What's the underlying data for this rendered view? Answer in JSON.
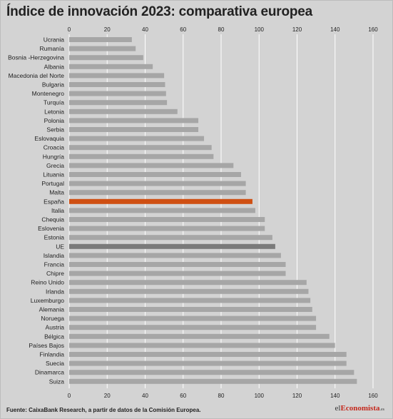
{
  "title": "Índice de innovación 2023: comparativa europea",
  "source": "Fuente: CaixaBank Research, a partir de datos de la Comisión Europea.",
  "logo": {
    "prefix": "el",
    "brand": "Economista",
    "suffix": ".es"
  },
  "colors": {
    "background": "#d3d3d3",
    "bar_default": "#a6a6a6",
    "bar_spain": "#cf4f12",
    "bar_eu": "#7a7a7a",
    "grid": "#ffffff",
    "text": "#222222"
  },
  "chart_data": {
    "type": "bar",
    "orientation": "horizontal",
    "xlim": [
      0,
      160
    ],
    "ticks": [
      "0",
      "20",
      "40",
      "60",
      "80",
      "100",
      "120",
      "140",
      "160"
    ],
    "tick_values": [
      0,
      20,
      40,
      60,
      80,
      100,
      120,
      140,
      160
    ],
    "axis_labels_top_and_bottom": true,
    "grid": true,
    "highlight": {
      "España": "bar_spain",
      "UE": "bar_eu"
    },
    "categories": [
      "Ucrania",
      "Rumanía",
      "Bosnia -Herzegovina",
      "Albania",
      "Macedonia del Norte",
      "Bulgaria",
      "Montenegro",
      "Turquía",
      "Letonia",
      "Polonia",
      "Serbia",
      "Eslovaquia",
      "Croacia",
      "Hungría",
      "Grecia",
      "Lituania",
      "Portugal",
      "Malta",
      "España",
      "Italia",
      "Chequia",
      "Eslovenia",
      "Estonia",
      "UE",
      "Islandia",
      "Francia",
      "Chipre",
      "Reino Unido",
      "Irlanda",
      "Luxemburgo",
      "Alemania",
      "Noruega",
      "Austria",
      "Bélgica",
      "Países Bajos",
      "Finlandia",
      "Suecia",
      "Dinamarca",
      "Suiza"
    ],
    "values": [
      33.0,
      35.0,
      39.0,
      44.0,
      50.0,
      50.5,
      51.0,
      51.5,
      57.0,
      68.0,
      68.0,
      71.0,
      75.0,
      76.0,
      86.5,
      90.5,
      93.0,
      93.0,
      96.5,
      98.0,
      103.0,
      103.0,
      107.0,
      108.5,
      111.5,
      114.0,
      114.0,
      125.0,
      126.0,
      127.0,
      128.0,
      130.0,
      130.0,
      137.0,
      140.0,
      146.0,
      146.0,
      150.0,
      151.5
    ]
  }
}
